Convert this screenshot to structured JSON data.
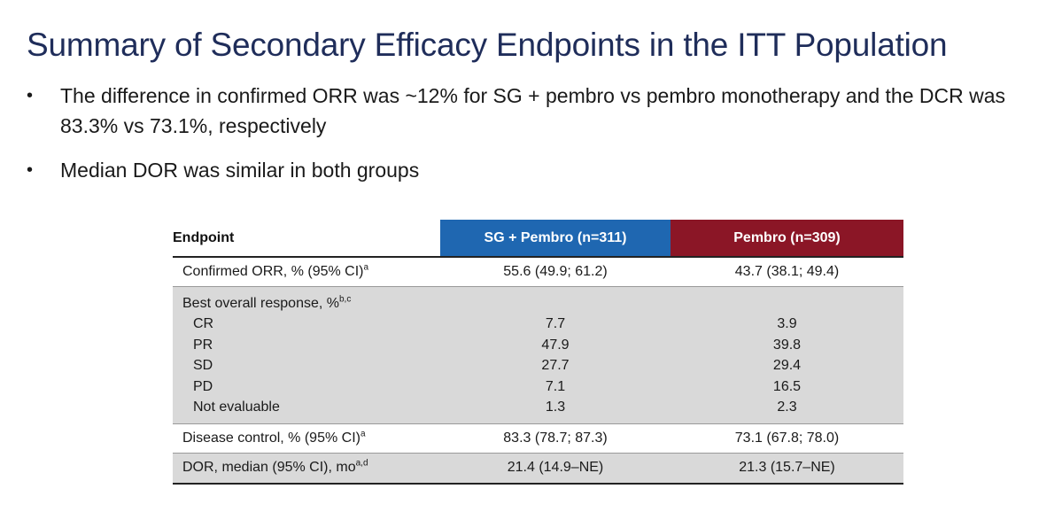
{
  "title": "Summary of Secondary Efficacy Endpoints in the ITT Population",
  "bullets": [
    "The difference in confirmed ORR was ~12% for SG + pembro vs pembro monotherapy and the DCR was 83.3% vs 73.1%, respectively",
    "Median DOR was similar in both groups"
  ],
  "bullet_symbol": "•",
  "table": {
    "headers": {
      "endpoint": "Endpoint",
      "sg_pembro": "SG + Pembro (n=311)",
      "pembro": "Pembro (n=309)"
    },
    "header_colors": {
      "sg_pembro": "#1f67b1",
      "pembro": "#8b1626"
    },
    "confirmed_orr": {
      "label": "Confirmed ORR, % (95% CI)",
      "sup": "a",
      "sg": "55.6 (49.9; 61.2)",
      "pembro": "43.7 (38.1; 49.4)"
    },
    "best_overall_response": {
      "label": "Best overall response, %",
      "sup": "b,c",
      "rows": [
        {
          "label": "CR",
          "sg": "7.7",
          "pembro": "3.9"
        },
        {
          "label": "PR",
          "sg": "47.9",
          "pembro": "39.8"
        },
        {
          "label": "SD",
          "sg": "27.7",
          "pembro": "29.4"
        },
        {
          "label": "PD",
          "sg": "7.1",
          "pembro": "16.5"
        },
        {
          "label": "Not evaluable",
          "sg": "1.3",
          "pembro": "2.3"
        }
      ]
    },
    "disease_control": {
      "label": "Disease control, % (95% CI)",
      "sup": "a",
      "sg": "83.3 (78.7; 87.3)",
      "pembro": "73.1 (67.8; 78.0)"
    },
    "dor": {
      "label": "DOR, median (95% CI), mo",
      "sup": "a,d",
      "sg": "21.4 (14.9–NE)",
      "pembro": "21.3 (15.7–NE)"
    }
  }
}
